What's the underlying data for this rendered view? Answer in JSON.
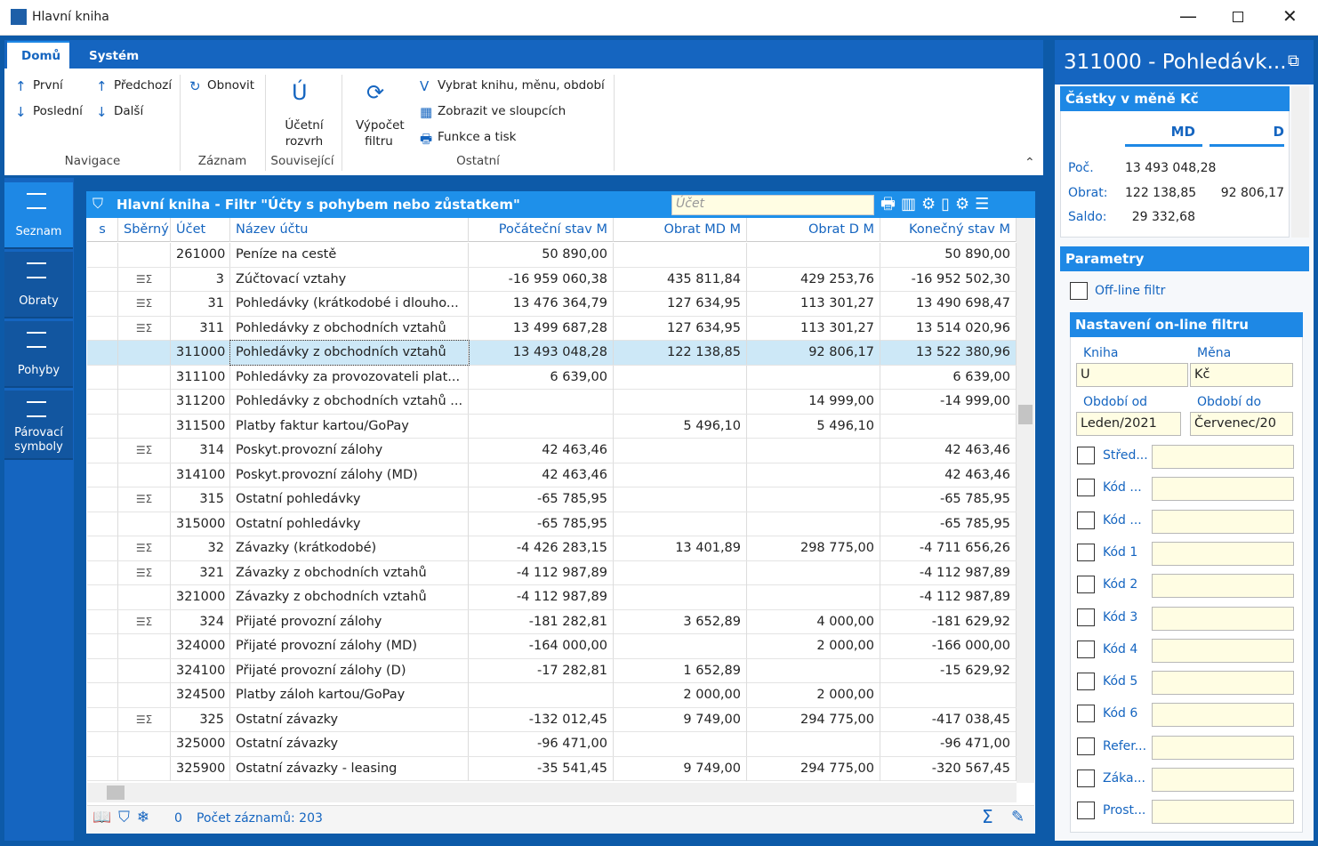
{
  "window": {
    "title": "Hlavní kniha"
  },
  "ribbon": {
    "tabs": [
      "Domů",
      "Systém"
    ],
    "groups": [
      {
        "label": "Navigace",
        "items": [
          "První",
          "Předchozí",
          "Poslední",
          "Další"
        ]
      },
      {
        "label": "Záznam",
        "items": [
          "Obnovit"
        ]
      },
      {
        "label": "Související",
        "items": [
          "Účetní rozvrh"
        ]
      },
      {
        "label": "Ostatní",
        "items": [
          "Výpočet filtru",
          "Vybrat knihu, měnu, období",
          "Zobrazit ve sloupcích",
          "Funkce a tisk"
        ]
      }
    ]
  },
  "side_nav": [
    "Seznam",
    "Obraty",
    "Pohyby",
    "Párovací symboly"
  ],
  "grid": {
    "title": "Hlavní kniha - Filtr \"Účty s pohybem nebo zůstatkem\"",
    "search_placeholder": "Účet",
    "columns": [
      "s",
      "Sběrný",
      "Účet",
      "Název účtu",
      "Počáteční stav M",
      "Obrat MD M",
      "Obrat D M",
      "Konečný stav M"
    ],
    "selected_row": 4,
    "rows": [
      {
        "cells": [
          "261000",
          "Peníze na cestě",
          "50 890,00",
          null,
          null,
          "50 890,00"
        ],
        "group": false
      },
      {
        "cells": [
          "3",
          "Zúčtovací vztahy",
          "-16 959 060,38",
          "435 811,84",
          "429 253,76",
          "-16 952 502,30"
        ],
        "group": true
      },
      {
        "cells": [
          "31",
          "Pohledávky (krátkodobé i dlouho...",
          "13 476 364,79",
          "127 634,95",
          "113 301,27",
          "13 490 698,47"
        ],
        "group": true
      },
      {
        "cells": [
          "311",
          "Pohledávky z obchodních vztahů",
          "13 499 687,28",
          "127 634,95",
          "113 301,27",
          "13 514 020,96"
        ],
        "group": true
      },
      {
        "cells": [
          "311000",
          "Pohledávky z obchodních vztahů",
          "13 493 048,28",
          "122 138,85",
          "92 806,17",
          "13 522 380,96"
        ],
        "group": false
      },
      {
        "cells": [
          "311100",
          "Pohledávky za provozovateli plat...",
          "6 639,00",
          null,
          null,
          "6 639,00"
        ],
        "group": false
      },
      {
        "cells": [
          "311200",
          "Pohledávky z obchodních vztahů ...",
          null,
          null,
          "14 999,00",
          "-14 999,00"
        ],
        "group": false
      },
      {
        "cells": [
          "311500",
          "Platby faktur kartou/GoPay",
          null,
          "5 496,10",
          "5 496,10",
          null
        ],
        "group": false
      },
      {
        "cells": [
          "314",
          "Poskyt.provozní zálohy",
          "42 463,46",
          null,
          null,
          "42 463,46"
        ],
        "group": true
      },
      {
        "cells": [
          "314100",
          "Poskyt.provozní zálohy (MD)",
          "42 463,46",
          null,
          null,
          "42 463,46"
        ],
        "group": false
      },
      {
        "cells": [
          "315",
          "Ostatní pohledávky",
          "-65 785,95",
          null,
          null,
          "-65 785,95"
        ],
        "group": true
      },
      {
        "cells": [
          "315000",
          "Ostatní pohledávky",
          "-65 785,95",
          null,
          null,
          "-65 785,95"
        ],
        "group": false
      },
      {
        "cells": [
          "32",
          "Závazky (krátkodobé)",
          "-4 426 283,15",
          "13 401,89",
          "298 775,00",
          "-4 711 656,26"
        ],
        "group": true
      },
      {
        "cells": [
          "321",
          "Závazky z obchodních vztahů",
          "-4 112 987,89",
          null,
          null,
          "-4 112 987,89"
        ],
        "group": true
      },
      {
        "cells": [
          "321000",
          "Závazky z obchodních vztahů",
          "-4 112 987,89",
          null,
          null,
          "-4 112 987,89"
        ],
        "group": false
      },
      {
        "cells": [
          "324",
          "Přijaté provozní zálohy",
          "-181 282,81",
          "3 652,89",
          "4 000,00",
          "-181 629,92"
        ],
        "group": true
      },
      {
        "cells": [
          "324000",
          "Přijaté provozní zálohy (MD)",
          "-164 000,00",
          null,
          "2 000,00",
          "-166 000,00"
        ],
        "group": false
      },
      {
        "cells": [
          "324100",
          "Přijaté provozní zálohy (D)",
          "-17 282,81",
          "1 652,89",
          null,
          "-15 629,92"
        ],
        "group": false
      },
      {
        "cells": [
          "324500",
          "Platby záloh kartou/GoPay",
          null,
          "2 000,00",
          "2 000,00",
          null
        ],
        "group": false
      },
      {
        "cells": [
          "325",
          "Ostatní závazky",
          "-132 012,45",
          "9 749,00",
          "294 775,00",
          "-417 038,45"
        ],
        "group": true
      },
      {
        "cells": [
          "325000",
          "Ostatní závazky",
          "-96 471,00",
          null,
          null,
          "-96 471,00"
        ],
        "group": false
      },
      {
        "cells": [
          "325900",
          "Ostatní závazky - leasing",
          "-35 541,45",
          "9 749,00",
          "294 775,00",
          "-320 567,45"
        ],
        "group": false
      }
    ],
    "footer": {
      "count": "0",
      "records": "Počet záznamů: 203"
    }
  },
  "detail": {
    "title": "311000 - Pohledávk...",
    "amounts": {
      "title": "Částky v měně Kč",
      "columns": [
        "MD",
        "D"
      ],
      "rows": [
        {
          "label": "Poč.",
          "values": [
            "13 493 048,28",
            null
          ]
        },
        {
          "label": "Obrat:",
          "values": [
            "122 138,85",
            "92 806,17"
          ]
        },
        {
          "label": "Saldo:",
          "values": [
            "29 332,68",
            null
          ]
        }
      ]
    },
    "parameters": {
      "title": "Parametry",
      "offline": "Off-line filtr",
      "online_title": "Nastavení on-line filtru",
      "fields": [
        {
          "label": "Kniha",
          "value": "U"
        },
        {
          "label": "Měna",
          "value": "Kč"
        },
        {
          "label": "Období od",
          "value": "Leden/2021"
        },
        {
          "label": "Období do",
          "value": "Červenec/20"
        }
      ],
      "filters": [
        "Střed...",
        "Kód ...",
        "Kód ...",
        "Kód 1",
        "Kód 2",
        "Kód 3",
        "Kód 4",
        "Kód 5",
        "Kód 6",
        "Refer...",
        "Záka...",
        "Prost..."
      ]
    }
  }
}
